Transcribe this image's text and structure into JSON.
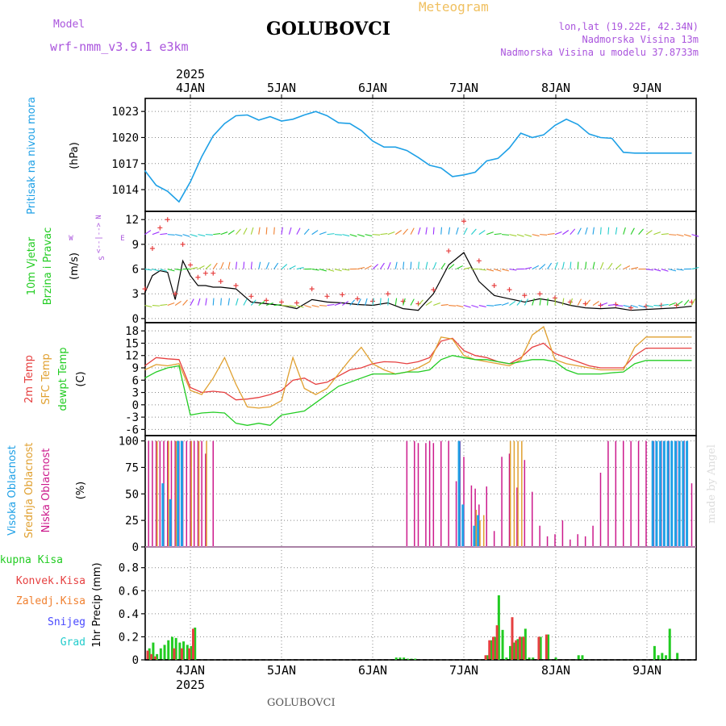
{
  "header": {
    "model_label": "Model",
    "model_name": "wrf-nmm_v3.9.1 e3km",
    "title": "GOLUBOVCI",
    "product": "Meteogram",
    "lonlat": "lon,lat (19.22E, 42.34N)",
    "elevation": "Nadmorska Visina 13m",
    "model_elevation": "Nadmorska Visina u modelu 37.8733m"
  },
  "footer": {
    "station": "GOLUBOVCI",
    "credit": "made by Angel"
  },
  "colors": {
    "pressure": "#1ea0e6",
    "wind_arrow_text": "#22cc22",
    "tmp2m": "#e64040",
    "sfc": "#e0a030",
    "dewpt": "#22cc22",
    "cloud_high": "#1ea0e6",
    "cloud_mid": "#e0a030",
    "cloud_low": "#cc1a8c",
    "precip_total": "#22cc22",
    "precip_conv": "#e64040",
    "precip_snow": "#4848ff",
    "precip_ice": "#f08030",
    "precip_hail": "#22cccc",
    "purple_text": "#aa55dd"
  },
  "chart_data": [
    {
      "type": "line",
      "panel": "pressure",
      "ylabel": "Pritisak na nivou mora",
      "unit": "(hPa)",
      "ylim": [
        1011.5,
        1024.5
      ],
      "yticks": [
        "1014",
        "1017",
        "1020",
        "1023"
      ],
      "x_top_year": "2025",
      "x_categories": [
        "4JAN",
        "5JAN",
        "6JAN",
        "7JAN",
        "8JAN",
        "9JAN"
      ],
      "xlim": [
        0,
        144
      ],
      "series": [
        {
          "name": "SLP",
          "x": [
            0,
            3,
            6,
            9,
            12,
            15,
            18,
            21,
            24,
            27,
            30,
            33,
            36,
            39,
            42,
            45,
            48,
            51,
            54,
            57,
            60,
            63,
            66,
            69,
            72,
            75,
            78,
            81,
            84,
            87,
            90,
            93,
            96,
            99,
            102,
            105,
            108,
            111,
            114,
            117,
            120,
            123,
            126,
            129,
            132,
            135,
            138,
            141,
            144
          ],
          "values": [
            1016.2,
            1014.5,
            1013.8,
            1012.6,
            1014.9,
            1017.8,
            1020.2,
            1021.6,
            1022.5,
            1022.6,
            1022.0,
            1022.4,
            1021.9,
            1022.1,
            1022.6,
            1023.0,
            1022.5,
            1021.7,
            1021.6,
            1020.8,
            1019.6,
            1018.9,
            1018.9,
            1018.5,
            1017.7,
            1016.8,
            1016.5,
            1015.5,
            1015.7,
            1016.0,
            1017.3,
            1017.6,
            1018.8,
            1020.5,
            1020.0,
            1020.3,
            1021.4,
            1022.1,
            1021.5,
            1020.4,
            1020.0,
            1019.9,
            1018.3,
            1018.2,
            1018.2,
            1018.2,
            1018.2,
            1018.2,
            1018.2
          ]
        }
      ]
    },
    {
      "type": "line",
      "panel": "wind",
      "ylabel": [
        "10m Vjetar",
        "Brzina i Pravac"
      ],
      "unit": "(m/s)",
      "compass": [
        "N",
        "E",
        "W",
        "S",
        "<--|-->"
      ],
      "ylim": [
        -0.5,
        13
      ],
      "yticks": [
        "0",
        "3",
        "6",
        "9",
        "12"
      ],
      "series": [
        {
          "name": "wind speed",
          "x": [
            0,
            2,
            4,
            6,
            8,
            10,
            12,
            14,
            16,
            18,
            20,
            24,
            28,
            32,
            36,
            40,
            44,
            48,
            52,
            56,
            60,
            64,
            68,
            72,
            76,
            80,
            84,
            88,
            92,
            96,
            100,
            104,
            108,
            112,
            116,
            120,
            124,
            128,
            132,
            136,
            140,
            144
          ],
          "values": [
            3.1,
            5.2,
            5.8,
            5.6,
            2.3,
            7.0,
            5.2,
            4.0,
            4.0,
            3.8,
            3.8,
            3.6,
            2.0,
            1.8,
            1.6,
            1.2,
            2.3,
            2.0,
            1.9,
            1.7,
            1.6,
            1.9,
            1.2,
            1.0,
            3.0,
            6.5,
            8.0,
            4.5,
            2.8,
            2.4,
            2.0,
            2.4,
            2.1,
            1.6,
            1.3,
            1.2,
            1.3,
            1.0,
            1.1,
            1.2,
            1.3,
            1.5
          ]
        },
        {
          "name": "wind gust",
          "x": [
            0,
            2,
            4,
            6,
            8,
            10,
            12,
            14,
            16,
            18,
            20,
            24,
            28,
            32,
            36,
            40,
            44,
            48,
            52,
            56,
            60,
            64,
            68,
            72,
            76,
            80,
            84,
            88,
            92,
            96,
            100,
            104,
            108,
            112,
            116,
            120,
            124,
            128,
            132,
            136,
            140,
            144
          ],
          "values": [
            3.6,
            8.5,
            11.0,
            12.0,
            3.0,
            9.0,
            6.5,
            5.0,
            5.5,
            5.5,
            4.5,
            4.0,
            2.7,
            2.2,
            2.0,
            1.9,
            3.6,
            2.7,
            2.9,
            2.4,
            2.1,
            3.0,
            2.1,
            1.8,
            3.5,
            8.2,
            11.8,
            7.0,
            4.0,
            3.5,
            2.8,
            3.0,
            2.5,
            2.0,
            1.8,
            1.6,
            1.7,
            1.3,
            1.5,
            1.6,
            1.6,
            2.0
          ]
        }
      ]
    },
    {
      "type": "line",
      "panel": "temperature",
      "ylabel": [
        "2m Temp",
        "SFC Temp",
        "dewpt Temp"
      ],
      "unit": "(C)",
      "ylim": [
        -7.5,
        20
      ],
      "yticks": [
        "18",
        "15",
        "12",
        "9",
        "6",
        "3",
        "0",
        "-3",
        "-6"
      ],
      "series": [
        {
          "name": "2m Temp",
          "x": [
            0,
            3,
            6,
            9,
            12,
            15,
            18,
            21,
            24,
            27,
            30,
            33,
            36,
            39,
            42,
            45,
            48,
            51,
            54,
            57,
            60,
            63,
            66,
            69,
            72,
            75,
            78,
            81,
            84,
            87,
            90,
            93,
            96,
            99,
            102,
            105,
            108,
            111,
            114,
            117,
            120,
            123,
            126,
            129,
            132,
            135,
            138,
            141,
            144
          ],
          "values": [
            9.5,
            11.5,
            11.2,
            11.0,
            4.2,
            3.0,
            3.3,
            3.0,
            1.2,
            1.4,
            1.8,
            2.5,
            3.5,
            6.0,
            6.5,
            5.0,
            5.5,
            7.0,
            8.5,
            9.0,
            10.0,
            10.5,
            10.4,
            10.0,
            10.5,
            11.5,
            15.5,
            16.2,
            13.2,
            12.0,
            11.5,
            10.5,
            10.0,
            11.5,
            14.0,
            15.0,
            12.5,
            11.5,
            10.5,
            9.5,
            9.0,
            9.0,
            9.0,
            12.0,
            13.8,
            13.8,
            13.8,
            13.8,
            13.8
          ]
        },
        {
          "name": "SFC Temp",
          "x": [
            0,
            3,
            6,
            9,
            12,
            15,
            18,
            21,
            24,
            27,
            30,
            33,
            36,
            39,
            42,
            45,
            48,
            51,
            54,
            57,
            60,
            63,
            66,
            69,
            72,
            75,
            78,
            81,
            84,
            87,
            90,
            93,
            96,
            99,
            102,
            105,
            108,
            111,
            114,
            117,
            120,
            123,
            126,
            129,
            132,
            135,
            138,
            141,
            144
          ],
          "values": [
            8.5,
            9.8,
            9.5,
            10.0,
            3.5,
            2.5,
            6.5,
            11.5,
            5.0,
            -0.5,
            -0.8,
            -0.5,
            1.0,
            11.5,
            4.0,
            2.5,
            4.0,
            7.5,
            11.0,
            14.0,
            10.0,
            8.5,
            7.5,
            8.0,
            9.0,
            10.5,
            16.5,
            16.0,
            12.0,
            11.0,
            10.5,
            10.0,
            9.5,
            11.0,
            17.0,
            19.0,
            11.0,
            10.0,
            9.5,
            9.0,
            8.5,
            8.5,
            8.5,
            14.0,
            16.5,
            16.5,
            16.5,
            16.5,
            16.5
          ]
        },
        {
          "name": "dewpt",
          "x": [
            0,
            3,
            6,
            9,
            12,
            15,
            18,
            21,
            24,
            27,
            30,
            33,
            36,
            39,
            42,
            45,
            48,
            51,
            54,
            57,
            60,
            63,
            66,
            69,
            72,
            75,
            78,
            81,
            84,
            87,
            90,
            93,
            96,
            99,
            102,
            105,
            108,
            111,
            114,
            117,
            120,
            123,
            126,
            129,
            132,
            135,
            138,
            141,
            144
          ],
          "values": [
            6.5,
            8.0,
            9.0,
            9.5,
            -2.5,
            -2.0,
            -1.8,
            -2.0,
            -4.5,
            -5.0,
            -4.5,
            -5.0,
            -2.5,
            -2.0,
            -1.5,
            0.5,
            2.5,
            4.5,
            5.5,
            6.5,
            7.5,
            7.5,
            7.5,
            8.0,
            8.0,
            8.5,
            11.0,
            12.0,
            11.5,
            11.0,
            11.0,
            10.5,
            10.0,
            10.5,
            11.0,
            11.0,
            10.5,
            8.5,
            7.5,
            7.5,
            7.5,
            7.8,
            8.0,
            10.0,
            10.8,
            10.8,
            10.8,
            10.8,
            10.8
          ]
        }
      ]
    },
    {
      "type": "bar",
      "panel": "clouds",
      "ylabel": [
        "Visoka Oblacnost",
        "Srednja Oblacnost",
        "Niska Oblacnost"
      ],
      "unit": "(%)",
      "ylim": [
        0,
        105
      ],
      "yticks": [
        "100",
        "75",
        "50",
        "25",
        "0"
      ],
      "series": [
        {
          "name": "low",
          "x": [
            1,
            2,
            3,
            4,
            5,
            6,
            7,
            8,
            9,
            10,
            11,
            12,
            13,
            14,
            15,
            16,
            18,
            69,
            71,
            72,
            74,
            75,
            76,
            78,
            80,
            82,
            83,
            84,
            86,
            87,
            88,
            90,
            92,
            94,
            96,
            98,
            100,
            102,
            104,
            106,
            108,
            110,
            112,
            114,
            116,
            118,
            120,
            122,
            124,
            126,
            128,
            130,
            132,
            134,
            136,
            138,
            140,
            142,
            144
          ],
          "values": [
            100,
            100,
            100,
            100,
            100,
            100,
            100,
            100,
            100,
            100,
            100,
            100,
            100,
            100,
            100,
            88,
            100,
            100,
            100,
            98,
            98,
            100,
            98,
            100,
            100,
            62,
            100,
            85,
            58,
            55,
            40,
            57,
            15,
            85,
            88,
            56,
            82,
            52,
            20,
            10,
            12,
            25,
            7,
            12,
            10,
            20,
            70,
            100,
            100,
            100,
            100,
            100,
            100,
            100,
            100,
            100,
            100,
            100,
            60
          ]
        },
        {
          "name": "mid",
          "x": [
            3,
            6,
            8,
            12,
            14,
            16,
            87,
            88,
            89,
            96,
            97,
            98,
            99
          ],
          "values": [
            100,
            100,
            100,
            100,
            100,
            100,
            35,
            25,
            30,
            100,
            100,
            100,
            100
          ]
        },
        {
          "name": "high",
          "x": [
            5,
            7,
            9,
            10,
            83,
            84,
            87,
            88,
            134,
            135,
            136,
            137,
            138,
            139,
            140,
            141,
            142,
            143
          ],
          "values": [
            60,
            45,
            100,
            100,
            100,
            40,
            20,
            30,
            100,
            100,
            100,
            100,
            100,
            100,
            100,
            100,
            100,
            100
          ]
        }
      ]
    },
    {
      "type": "bar",
      "panel": "precipitation",
      "ylabel": [
        "Ukupna Kisa",
        "Konvek.Kisa",
        "Zaledj.Kisa",
        "Snijeg",
        "Grad"
      ],
      "unit": "1hr Precip (mm)",
      "ylim": [
        0,
        0.98
      ],
      "yticks": [
        "0.8",
        "0.6",
        "0.4",
        "0.2",
        "0"
      ],
      "x_bottom_categories": [
        "4JAN",
        "5JAN",
        "6JAN",
        "7JAN",
        "8JAN",
        "9JAN"
      ],
      "x_bottom_year": "2025",
      "series": [
        {
          "name": "total",
          "x": [
            1,
            2,
            3,
            4,
            5,
            6,
            7,
            8,
            9,
            10,
            11,
            12,
            13,
            66,
            67,
            68,
            69,
            70,
            71,
            90,
            91,
            92,
            93,
            94,
            95,
            96,
            97,
            98,
            99,
            100,
            101,
            102,
            104,
            106,
            108,
            114,
            115,
            134,
            135,
            136,
            137,
            138,
            140
          ],
          "values": [
            0.1,
            0.15,
            0.05,
            0.1,
            0.13,
            0.17,
            0.2,
            0.19,
            0.15,
            0.16,
            0.13,
            0.12,
            0.28,
            0.02,
            0.02,
            0.02,
            0.01,
            0.01,
            0.01,
            0.04,
            0.17,
            0.2,
            0.56,
            0.26,
            0.02,
            0.12,
            0.15,
            0.18,
            0.2,
            0.27,
            0.02,
            0.02,
            0.2,
            0.22,
            0.02,
            0.04,
            0.04,
            0.12,
            0.04,
            0.06,
            0.04,
            0.27,
            0.06
          ]
        },
        {
          "name": "convective",
          "x": [
            1,
            2,
            3,
            8,
            10,
            12,
            13,
            90,
            91,
            92,
            93,
            97,
            98,
            99,
            100,
            104,
            106
          ],
          "values": [
            0.08,
            0.05,
            0.03,
            0.1,
            0.1,
            0.1,
            0.27,
            0.04,
            0.17,
            0.2,
            0.3,
            0.37,
            0.17,
            0.2,
            0.2,
            0.2,
            0.22
          ]
        }
      ]
    }
  ]
}
